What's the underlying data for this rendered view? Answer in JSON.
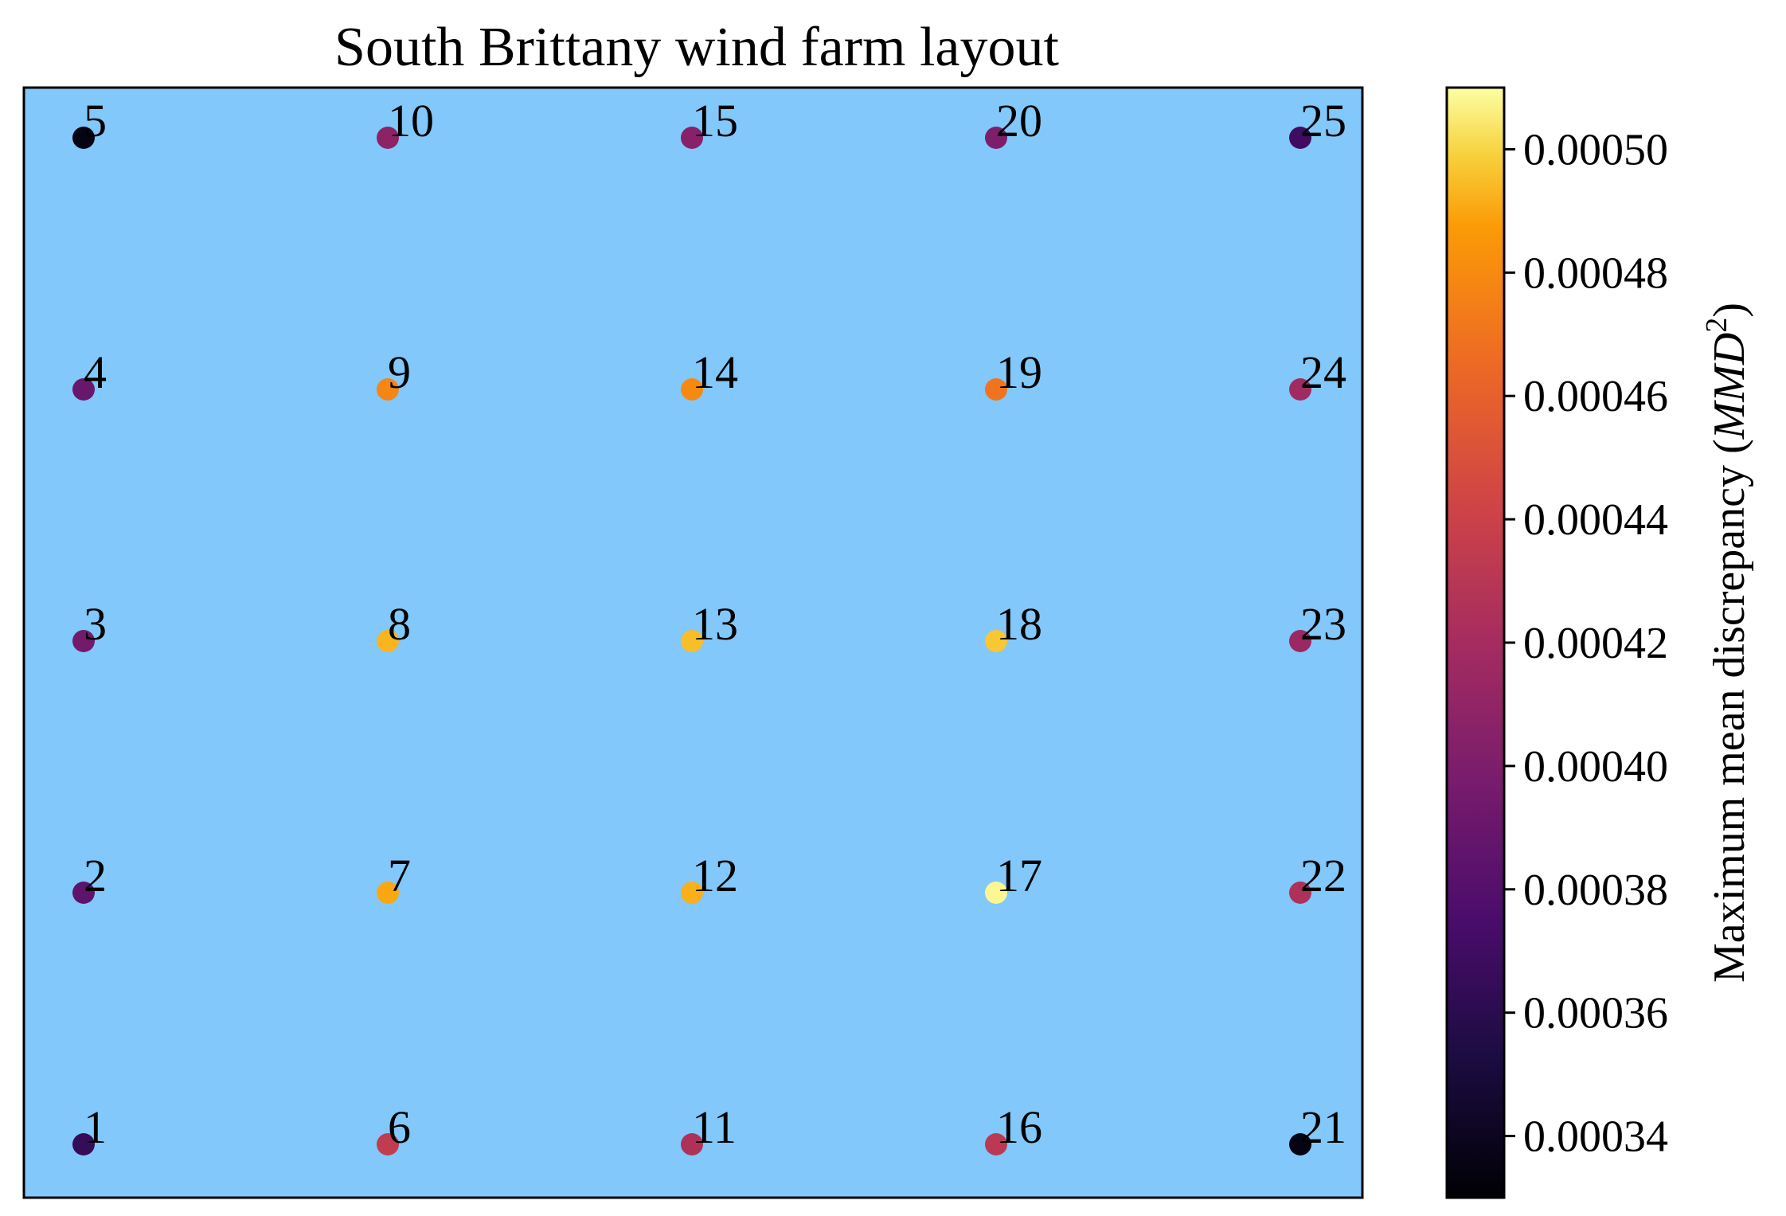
{
  "chart_data": {
    "type": "scatter",
    "title": "South Brittany wind farm layout",
    "background_color": "#82c8fa",
    "colormap": "inferno",
    "colorbar": {
      "label_prefix": "Maximum mean discrepancy (",
      "label_var": "MMD",
      "label_sup": "2",
      "label_suffix": ")",
      "range": [
        0.00033,
        0.00051
      ],
      "ticks": [
        0.00034,
        0.00036,
        0.00038,
        0.0004,
        0.00042,
        0.00044,
        0.00046,
        0.00048,
        0.0005
      ],
      "tick_labels": [
        "0.00034",
        "0.00036",
        "0.00038",
        "0.00040",
        "0.00042",
        "0.00044",
        "0.00046",
        "0.00048",
        "0.00050"
      ]
    },
    "grid": false,
    "axes_ticks": false,
    "points": [
      {
        "label": "1",
        "col": 1,
        "row": 1,
        "value": 0.000365
      },
      {
        "label": "2",
        "col": 1,
        "row": 2,
        "value": 0.000385
      },
      {
        "label": "3",
        "col": 1,
        "row": 3,
        "value": 0.000395
      },
      {
        "label": "4",
        "col": 1,
        "row": 4,
        "value": 0.00039
      },
      {
        "label": "5",
        "col": 1,
        "row": 5,
        "value": 0.000335
      },
      {
        "label": "6",
        "col": 2,
        "row": 1,
        "value": 0.000435
      },
      {
        "label": "7",
        "col": 2,
        "row": 2,
        "value": 0.00049
      },
      {
        "label": "8",
        "col": 2,
        "row": 3,
        "value": 0.000493
      },
      {
        "label": "9",
        "col": 2,
        "row": 4,
        "value": 0.000478
      },
      {
        "label": "10",
        "col": 2,
        "row": 5,
        "value": 0.000408
      },
      {
        "label": "11",
        "col": 3,
        "row": 1,
        "value": 0.000425
      },
      {
        "label": "12",
        "col": 3,
        "row": 2,
        "value": 0.000492
      },
      {
        "label": "13",
        "col": 3,
        "row": 3,
        "value": 0.000495
      },
      {
        "label": "14",
        "col": 3,
        "row": 4,
        "value": 0.00048
      },
      {
        "label": "15",
        "col": 3,
        "row": 5,
        "value": 0.000405
      },
      {
        "label": "16",
        "col": 4,
        "row": 1,
        "value": 0.000432
      },
      {
        "label": "17",
        "col": 4,
        "row": 2,
        "value": 0.000508
      },
      {
        "label": "18",
        "col": 4,
        "row": 3,
        "value": 0.000497
      },
      {
        "label": "19",
        "col": 4,
        "row": 4,
        "value": 0.00047
      },
      {
        "label": "20",
        "col": 4,
        "row": 5,
        "value": 0.0004
      },
      {
        "label": "21",
        "col": 5,
        "row": 1,
        "value": 0.000335
      },
      {
        "label": "22",
        "col": 5,
        "row": 2,
        "value": 0.000425
      },
      {
        "label": "23",
        "col": 5,
        "row": 3,
        "value": 0.000415
      },
      {
        "label": "24",
        "col": 5,
        "row": 4,
        "value": 0.000418
      },
      {
        "label": "25",
        "col": 5,
        "row": 5,
        "value": 0.00037
      }
    ]
  }
}
